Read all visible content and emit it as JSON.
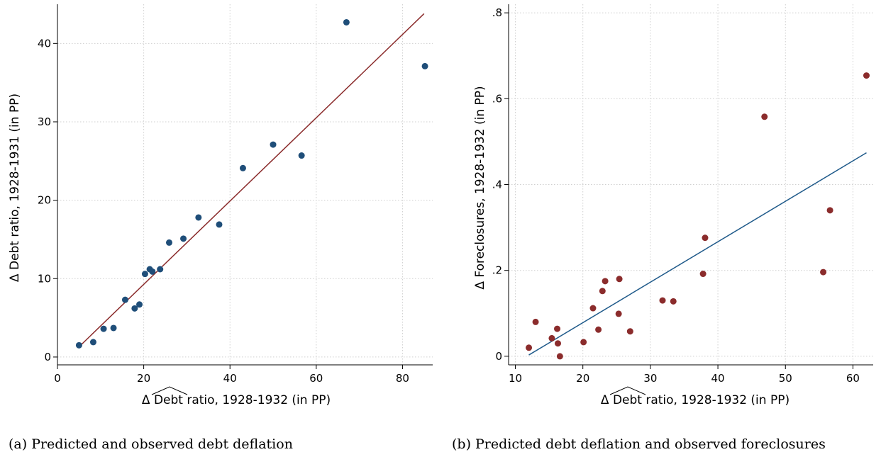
{
  "chart_data": [
    {
      "type": "scatter",
      "caption": "(a) Predicted and observed debt deflation",
      "xlabel": "Δ Debt ratio, 1928-1932 (in PP)",
      "ylabel": "Δ Debt ratio, 1928-1931 (in PP)",
      "xlim": [
        0,
        87
      ],
      "ylim": [
        -1,
        45
      ],
      "xticks": [
        0,
        20,
        40,
        60,
        80
      ],
      "xtick_labels": [
        "0",
        "20",
        "40",
        "60",
        "80"
      ],
      "yticks": [
        0,
        10,
        20,
        30,
        40
      ],
      "ytick_labels": [
        "0",
        "10",
        "20",
        "30",
        "40"
      ],
      "grid": true,
      "point_color": "#1f4e79",
      "line_color": "#8b2c2c",
      "fit_line": {
        "x": [
          5,
          85
        ],
        "y": [
          1.3,
          43.8
        ]
      },
      "points": {
        "x": [
          5.0,
          8.3,
          10.7,
          13.0,
          15.7,
          17.9,
          19.0,
          20.3,
          21.4,
          22.0,
          23.8,
          25.9,
          29.2,
          32.7,
          37.5,
          43.0,
          50.0,
          56.6,
          67.0,
          85.2
        ],
        "y": [
          1.5,
          1.9,
          3.6,
          3.7,
          7.3,
          6.2,
          6.7,
          10.6,
          11.2,
          10.9,
          11.2,
          14.6,
          15.1,
          17.8,
          16.9,
          24.1,
          27.1,
          25.7,
          42.7,
          37.1
        ]
      }
    },
    {
      "type": "scatter",
      "caption": "(b) Predicted debt deflation and observed foreclosures",
      "xlabel": "Δ Debt ratio, 1928-1932 (in PP)",
      "ylabel": "Δ Foreclosures, 1928-1932 (in PP)",
      "xlim": [
        9,
        63
      ],
      "ylim": [
        -0.02,
        0.82
      ],
      "xticks": [
        10,
        20,
        30,
        40,
        50,
        60
      ],
      "xtick_labels": [
        "10",
        "20",
        "30",
        "40",
        "50",
        "60"
      ],
      "yticks": [
        0,
        0.2,
        0.4,
        0.6,
        0.8
      ],
      "ytick_labels": [
        "0",
        ".2",
        ".4",
        ".6",
        ".8"
      ],
      "grid": true,
      "point_color": "#8b2c2c",
      "line_color": "#1f5a8a",
      "fit_line": {
        "x": [
          12,
          62
        ],
        "y": [
          0.003,
          0.474
        ]
      },
      "points": {
        "x": [
          12.0,
          13.0,
          15.4,
          16.2,
          16.3,
          16.6,
          20.1,
          21.5,
          22.3,
          22.9,
          23.3,
          25.3,
          25.4,
          27.0,
          31.8,
          33.4,
          37.8,
          38.1,
          46.9,
          55.6,
          56.6,
          62.0
        ],
        "y": [
          0.02,
          0.08,
          0.042,
          0.064,
          0.03,
          0.0,
          0.033,
          0.112,
          0.062,
          0.152,
          0.175,
          0.099,
          0.18,
          0.058,
          0.13,
          0.128,
          0.192,
          0.276,
          0.558,
          0.196,
          0.34,
          0.654
        ]
      }
    }
  ]
}
